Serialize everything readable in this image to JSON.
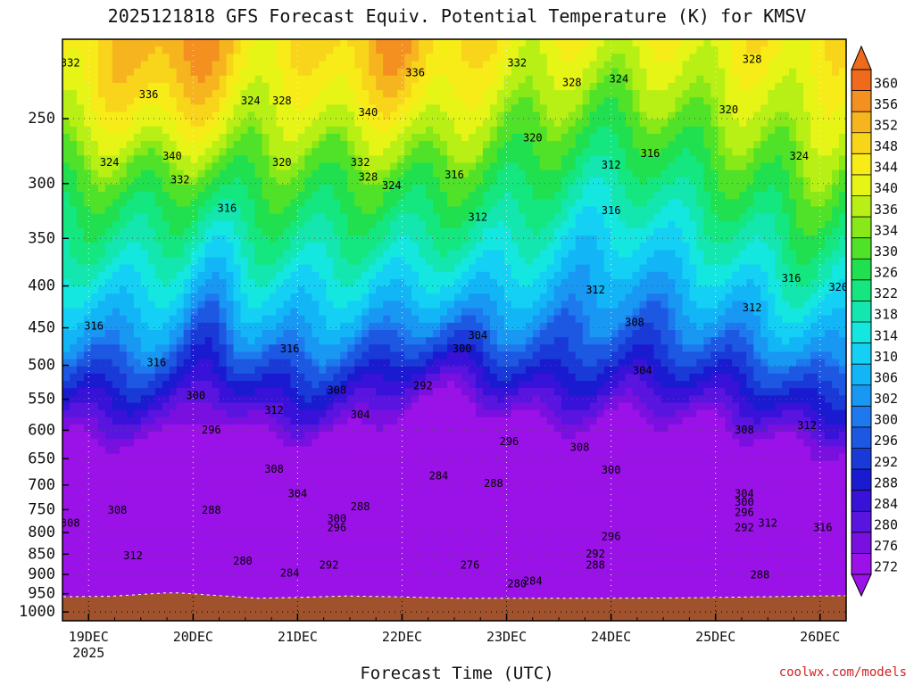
{
  "credit": "coolwx.com/models",
  "chart_data": {
    "type": "heatmap",
    "title": "2025121818 GFS Forecast Equiv. Potential Temperature (K) for KMSV",
    "xlabel": "Forecast Time (UTC)",
    "ylabel": "",
    "x_ticks": [
      "19DEC",
      "20DEC",
      "21DEC",
      "22DEC",
      "23DEC",
      "24DEC",
      "25DEC",
      "26DEC"
    ],
    "x_year": "2025",
    "y_axis": {
      "scale": "pressure",
      "inverted": true,
      "range": [
        1025,
        200
      ],
      "unit": "hPa"
    },
    "y_ticks": [
      250,
      300,
      350,
      400,
      450,
      500,
      550,
      600,
      650,
      700,
      750,
      800,
      850,
      900,
      950,
      1000
    ],
    "colorbar": {
      "levels": [
        272,
        276,
        280,
        284,
        288,
        292,
        296,
        300,
        302,
        306,
        310,
        314,
        318,
        322,
        326,
        330,
        334,
        336,
        340,
        344,
        348,
        352,
        356,
        360
      ],
      "colors": [
        "#9b12e8",
        "#7a10e0",
        "#5a14e0",
        "#3812d8",
        "#1a1ad0",
        "#1a3ad8",
        "#1c58e2",
        "#1e78ee",
        "#1898f2",
        "#12b6f6",
        "#14d0f4",
        "#14e6e0",
        "#14e6b0",
        "#14e680",
        "#20e050",
        "#50e228",
        "#88e818",
        "#b8f016",
        "#e6f416",
        "#f8ec18",
        "#f8d41a",
        "#f6b41e",
        "#f49020",
        "#f06a1c"
      ]
    },
    "contour_labels": [
      {
        "text": "332",
        "x": 0.01,
        "p": 214
      },
      {
        "text": "336",
        "x": 0.45,
        "p": 220
      },
      {
        "text": "332",
        "x": 0.58,
        "p": 214
      },
      {
        "text": "328",
        "x": 0.65,
        "p": 226
      },
      {
        "text": "324",
        "x": 0.71,
        "p": 224
      },
      {
        "text": "328",
        "x": 0.88,
        "p": 212
      },
      {
        "text": "336",
        "x": 0.11,
        "p": 234
      },
      {
        "text": "324",
        "x": 0.24,
        "p": 238
      },
      {
        "text": "328",
        "x": 0.28,
        "p": 238
      },
      {
        "text": "340",
        "x": 0.39,
        "p": 246
      },
      {
        "text": "320",
        "x": 0.85,
        "p": 244
      },
      {
        "text": "320",
        "x": 0.6,
        "p": 264
      },
      {
        "text": "340",
        "x": 0.14,
        "p": 278
      },
      {
        "text": "316",
        "x": 0.75,
        "p": 276
      },
      {
        "text": "324",
        "x": 0.94,
        "p": 278
      },
      {
        "text": "324",
        "x": 0.06,
        "p": 283
      },
      {
        "text": "320",
        "x": 0.28,
        "p": 283
      },
      {
        "text": "332",
        "x": 0.38,
        "p": 283
      },
      {
        "text": "312",
        "x": 0.7,
        "p": 285
      },
      {
        "text": "332",
        "x": 0.15,
        "p": 297
      },
      {
        "text": "328",
        "x": 0.39,
        "p": 295
      },
      {
        "text": "316",
        "x": 0.5,
        "p": 293
      },
      {
        "text": "324",
        "x": 0.42,
        "p": 302
      },
      {
        "text": "316",
        "x": 0.21,
        "p": 322
      },
      {
        "text": "312",
        "x": 0.53,
        "p": 330
      },
      {
        "text": "316",
        "x": 0.7,
        "p": 324
      },
      {
        "text": "316",
        "x": 0.93,
        "p": 392
      },
      {
        "text": "320",
        "x": 0.99,
        "p": 402
      },
      {
        "text": "312",
        "x": 0.68,
        "p": 405
      },
      {
        "text": "312",
        "x": 0.88,
        "p": 426
      },
      {
        "text": "308",
        "x": 0.73,
        "p": 444
      },
      {
        "text": "316",
        "x": 0.04,
        "p": 448
      },
      {
        "text": "304",
        "x": 0.53,
        "p": 460
      },
      {
        "text": "300",
        "x": 0.51,
        "p": 478
      },
      {
        "text": "316",
        "x": 0.29,
        "p": 478
      },
      {
        "text": "316",
        "x": 0.12,
        "p": 497
      },
      {
        "text": "304",
        "x": 0.74,
        "p": 508
      },
      {
        "text": "292",
        "x": 0.46,
        "p": 530
      },
      {
        "text": "308",
        "x": 0.35,
        "p": 537
      },
      {
        "text": "300",
        "x": 0.17,
        "p": 545
      },
      {
        "text": "312",
        "x": 0.27,
        "p": 568
      },
      {
        "text": "304",
        "x": 0.38,
        "p": 575
      },
      {
        "text": "312",
        "x": 0.95,
        "p": 593
      },
      {
        "text": "296",
        "x": 0.19,
        "p": 600
      },
      {
        "text": "308",
        "x": 0.87,
        "p": 600
      },
      {
        "text": "296",
        "x": 0.57,
        "p": 620
      },
      {
        "text": "308",
        "x": 0.66,
        "p": 630
      },
      {
        "text": "308",
        "x": 0.27,
        "p": 670
      },
      {
        "text": "300",
        "x": 0.7,
        "p": 672
      },
      {
        "text": "284",
        "x": 0.48,
        "p": 683
      },
      {
        "text": "288",
        "x": 0.55,
        "p": 698
      },
      {
        "text": "304",
        "x": 0.3,
        "p": 718
      },
      {
        "text": "304",
        "x": 0.87,
        "p": 718
      },
      {
        "text": "300",
        "x": 0.87,
        "p": 735
      },
      {
        "text": "288",
        "x": 0.19,
        "p": 752
      },
      {
        "text": "308",
        "x": 0.07,
        "p": 752
      },
      {
        "text": "288",
        "x": 0.38,
        "p": 745
      },
      {
        "text": "296",
        "x": 0.87,
        "p": 757
      },
      {
        "text": "300",
        "x": 0.35,
        "p": 770
      },
      {
        "text": "308",
        "x": 0.01,
        "p": 780
      },
      {
        "text": "312",
        "x": 0.9,
        "p": 780
      },
      {
        "text": "292",
        "x": 0.87,
        "p": 790
      },
      {
        "text": "316",
        "x": 0.97,
        "p": 790
      },
      {
        "text": "296",
        "x": 0.35,
        "p": 790
      },
      {
        "text": "296",
        "x": 0.7,
        "p": 810
      },
      {
        "text": "292",
        "x": 0.68,
        "p": 850
      },
      {
        "text": "312",
        "x": 0.09,
        "p": 855
      },
      {
        "text": "280",
        "x": 0.23,
        "p": 868
      },
      {
        "text": "292",
        "x": 0.34,
        "p": 878
      },
      {
        "text": "276",
        "x": 0.52,
        "p": 878
      },
      {
        "text": "288",
        "x": 0.68,
        "p": 878
      },
      {
        "text": "284",
        "x": 0.29,
        "p": 898
      },
      {
        "text": "288",
        "x": 0.89,
        "p": 902
      },
      {
        "text": "284",
        "x": 0.6,
        "p": 918
      },
      {
        "text": "280",
        "x": 0.58,
        "p": 925
      }
    ]
  }
}
